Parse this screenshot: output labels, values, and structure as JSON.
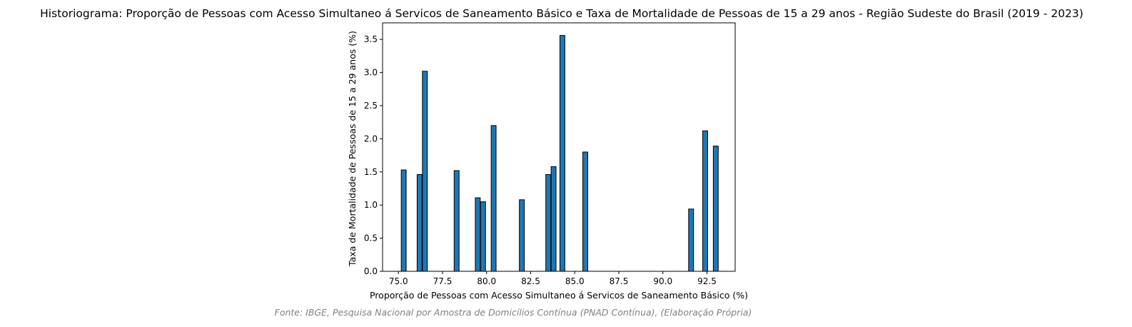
{
  "chart_data": {
    "type": "bar",
    "title": "Historiograma: Proporção de Pessoas com Acesso Simultaneo á Servicos de Saneamento Básico e Taxa de Mortalidade de Pessoas de 15 a 29 anos - Região Sudeste do Brasil (2019 - 2023)",
    "xlabel": "Proporção de Pessoas com Acesso Simultaneo á Servicos de Saneamento Básico (%)",
    "ylabel": "Taxa de Mortalidade de Pessoas de 15 a 29 anos (%)",
    "xlim": [
      74.1,
      94.1
    ],
    "ylim": [
      0,
      3.75
    ],
    "bar_width": 0.28,
    "bar_color": "#1f77b4",
    "edge_color": "#000000",
    "x_ticks": [
      75.0,
      77.5,
      80.0,
      82.5,
      85.0,
      87.5,
      90.0,
      92.5
    ],
    "x_tick_labels": [
      "75.0",
      "77.5",
      "80.0",
      "82.5",
      "85.0",
      "87.5",
      "90.0",
      "92.5"
    ],
    "y_ticks": [
      0.0,
      0.5,
      1.0,
      1.5,
      2.0,
      2.5,
      3.0,
      3.5
    ],
    "y_tick_labels": [
      "0.0",
      "0.5",
      "1.0",
      "1.5",
      "2.0",
      "2.5",
      "3.0",
      "3.5"
    ],
    "grid": false,
    "x": [
      75.3,
      76.2,
      76.5,
      78.3,
      79.5,
      79.8,
      80.4,
      82.0,
      83.5,
      83.8,
      84.3,
      85.6,
      91.6,
      92.4,
      93.0
    ],
    "values": [
      1.53,
      1.46,
      3.02,
      1.52,
      1.11,
      1.05,
      2.2,
      1.08,
      1.46,
      1.58,
      3.56,
      1.8,
      0.94,
      2.12,
      1.89
    ]
  },
  "source_note": "Fonte: IBGE, Pesquisa Nacional por Amostra de Domicílios Contínua (PNAD Contínua), (Elaboração Própria)"
}
